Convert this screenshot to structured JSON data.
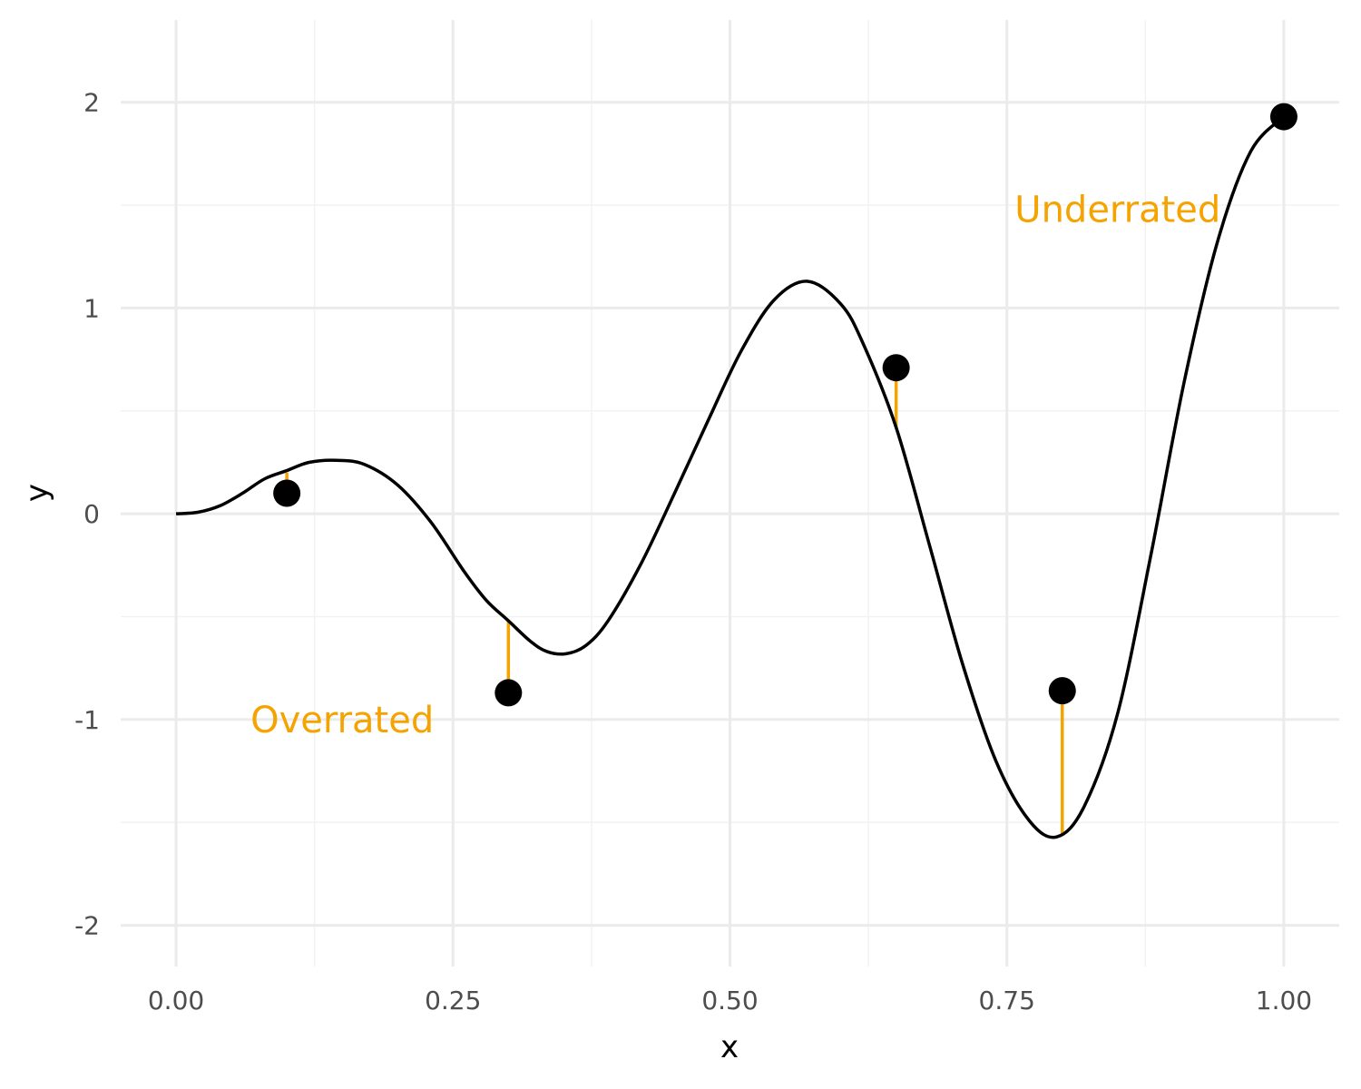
{
  "chart_data": {
    "type": "line",
    "title": "",
    "xlabel": "x",
    "ylabel": "y",
    "xlim": [
      -0.05,
      1.05
    ],
    "ylim": [
      -2.2,
      2.4
    ],
    "x_ticks": [
      {
        "value": 0.0,
        "label": "0.00"
      },
      {
        "value": 0.25,
        "label": "0.25"
      },
      {
        "value": 0.5,
        "label": "0.50"
      },
      {
        "value": 0.75,
        "label": "0.75"
      },
      {
        "value": 1.0,
        "label": "1.00"
      }
    ],
    "y_ticks": [
      {
        "value": -2,
        "label": "-2"
      },
      {
        "value": -1,
        "label": "-1"
      },
      {
        "value": 0,
        "label": "0"
      },
      {
        "value": 1,
        "label": "1"
      },
      {
        "value": 2,
        "label": "2"
      }
    ],
    "x_minor": [
      0.125,
      0.375,
      0.625,
      0.875
    ],
    "y_minor": [
      -1.5,
      -0.5,
      0.5,
      1.5
    ],
    "grid": true,
    "curve": {
      "x": [
        0.0,
        0.02,
        0.04,
        0.06,
        0.08,
        0.1,
        0.12,
        0.145,
        0.17,
        0.2,
        0.23,
        0.26,
        0.28,
        0.3,
        0.32,
        0.335,
        0.352,
        0.37,
        0.39,
        0.42,
        0.45,
        0.48,
        0.51,
        0.54,
        0.57,
        0.6,
        0.62,
        0.65,
        0.68,
        0.71,
        0.74,
        0.77,
        0.795,
        0.82,
        0.85,
        0.88,
        0.91,
        0.94,
        0.97,
        1.0
      ],
      "y": [
        0.0,
        0.008,
        0.04,
        0.1,
        0.17,
        0.21,
        0.25,
        0.26,
        0.24,
        0.14,
        -0.04,
        -0.28,
        -0.42,
        -0.52,
        -0.62,
        -0.67,
        -0.68,
        -0.64,
        -0.52,
        -0.24,
        0.1,
        0.45,
        0.79,
        1.04,
        1.13,
        1.02,
        0.83,
        0.42,
        -0.15,
        -0.73,
        -1.2,
        -1.49,
        -1.57,
        -1.42,
        -0.97,
        -0.2,
        0.64,
        1.32,
        1.76,
        1.93
      ]
    },
    "points": [
      {
        "x": 0.1,
        "y": 0.1,
        "fitted": 0.2
      },
      {
        "x": 0.3,
        "y": -0.87,
        "fitted": -0.52
      },
      {
        "x": 0.65,
        "y": 0.71,
        "fitted": 0.42
      },
      {
        "x": 0.8,
        "y": -0.86,
        "fitted": -1.56
      },
      {
        "x": 1.0,
        "y": 1.93,
        "fitted": 1.93
      }
    ],
    "annotations": [
      {
        "text": "Underrated",
        "x": 0.85,
        "y": 1.48,
        "color": "#F5A300"
      },
      {
        "text": "Overrated",
        "x": 0.15,
        "y": -1.0,
        "color": "#F5A300"
      }
    ],
    "colors": {
      "curve": "#000000",
      "points": "#000000",
      "residuals": "#F5A300",
      "grid_major": "#EBEBEB",
      "grid_minor": "#F2F2F2"
    }
  }
}
